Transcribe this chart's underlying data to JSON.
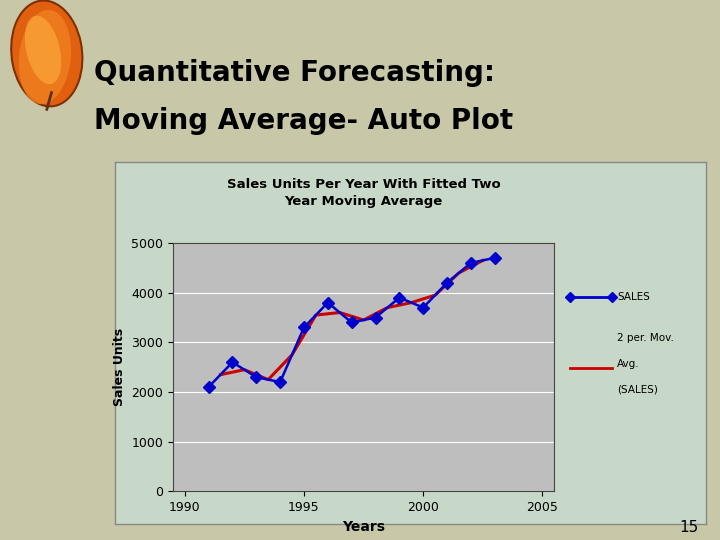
{
  "slide_title_line1": "Quantitative Forecasting:",
  "slide_title_line2": "Moving Average- Auto Plot",
  "chart_title": "Sales Units Per Year With Fitted Two\nYear Moving Average",
  "xlabel": "Years",
  "ylabel": "Sales Units",
  "years": [
    1991,
    1992,
    1993,
    1994,
    1995,
    1996,
    1997,
    1998,
    1999,
    2000,
    2001,
    2002,
    2003
  ],
  "sales": [
    2100,
    2600,
    2300,
    2200,
    3300,
    3800,
    3400,
    3500,
    3900,
    3700,
    4200,
    4600,
    4700
  ],
  "moving_avg_years": [
    1991.5,
    1992.5,
    1993.5,
    1994.5,
    1995.5,
    1996.5,
    1997.5,
    1998.5,
    1999.5,
    2000.5,
    2001.5,
    2002.5
  ],
  "moving_avg": [
    2350,
    2450,
    2250,
    2750,
    3550,
    3600,
    3450,
    3700,
    3800,
    3950,
    4400,
    4650
  ],
  "ylim": [
    0,
    5000
  ],
  "xlim": [
    1989.5,
    2005.5
  ],
  "yticks": [
    0,
    1000,
    2000,
    3000,
    4000,
    5000
  ],
  "xticks": [
    1990,
    1995,
    2000,
    2005
  ],
  "sales_color": "#0000CC",
  "mavg_color": "#CC0000",
  "plot_bg_color": "#BEBEBE",
  "slide_bg_color": "#C8C8A8",
  "header_bg_color": "#302810",
  "chart_outer_bg": "#C8D8C8",
  "legend_bg_color": "#D8E8D8",
  "slide_title_color": "#000000",
  "number_15_color": "#000000",
  "leaf_color1": "#E06000",
  "leaf_color2": "#F09020",
  "leaf_color3": "#D04000"
}
